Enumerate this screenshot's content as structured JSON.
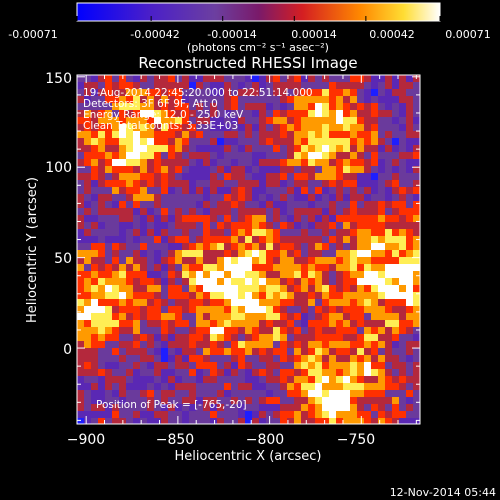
{
  "colorbar": {
    "tick_labels": [
      "-0.00071",
      "-0.00042",
      "-0.00014",
      "0.00014",
      "0.00042",
      "0.00071"
    ],
    "tick_values": [
      -0.00071,
      -0.00042,
      -0.00014,
      0.00014,
      0.00042,
      0.00071
    ],
    "range": [
      -0.00071,
      0.00071
    ],
    "unit_label": "(photons cm⁻² s⁻¹ asec⁻²)"
  },
  "footer": {
    "timestamp": "12-Nov-2014 05:44"
  },
  "chart_data": {
    "type": "heatmap",
    "title": "Reconstructed RHESSI Image",
    "xlabel": "Heliocentric X (arcsec)",
    "ylabel": "Heliocentric Y (arcsec)",
    "xlim": [
      -905,
      -718
    ],
    "ylim": [
      -42,
      151
    ],
    "x_ticks": [
      -900,
      -850,
      -800,
      -750
    ],
    "x_tick_labels": [
      "−900",
      "−850",
      "−800",
      "−750"
    ],
    "y_ticks": [
      0,
      50,
      100,
      150
    ],
    "y_tick_labels": [
      "0",
      "50",
      "100",
      "150"
    ],
    "annotations": [
      "19-Aug-2014 22:45:20.000 to 22:51:14.000",
      "Detectors: 3F 6F 9F, Att 0",
      "Energy Range: 12.0 - 25.0 keV",
      "Clean    Total counts: 3.33E+03"
    ],
    "peak_label": "Position of Peak = [-765,-20]",
    "peak": [
      -765,
      -20
    ],
    "colors": {
      "background": "#000000",
      "colormap": [
        "#1e1eff",
        "#5a28b4",
        "#6a3a9c",
        "#b4283c",
        "#ff3000",
        "#ff9a00",
        "#ffee55",
        "#ffffff"
      ]
    },
    "grid": false
  }
}
